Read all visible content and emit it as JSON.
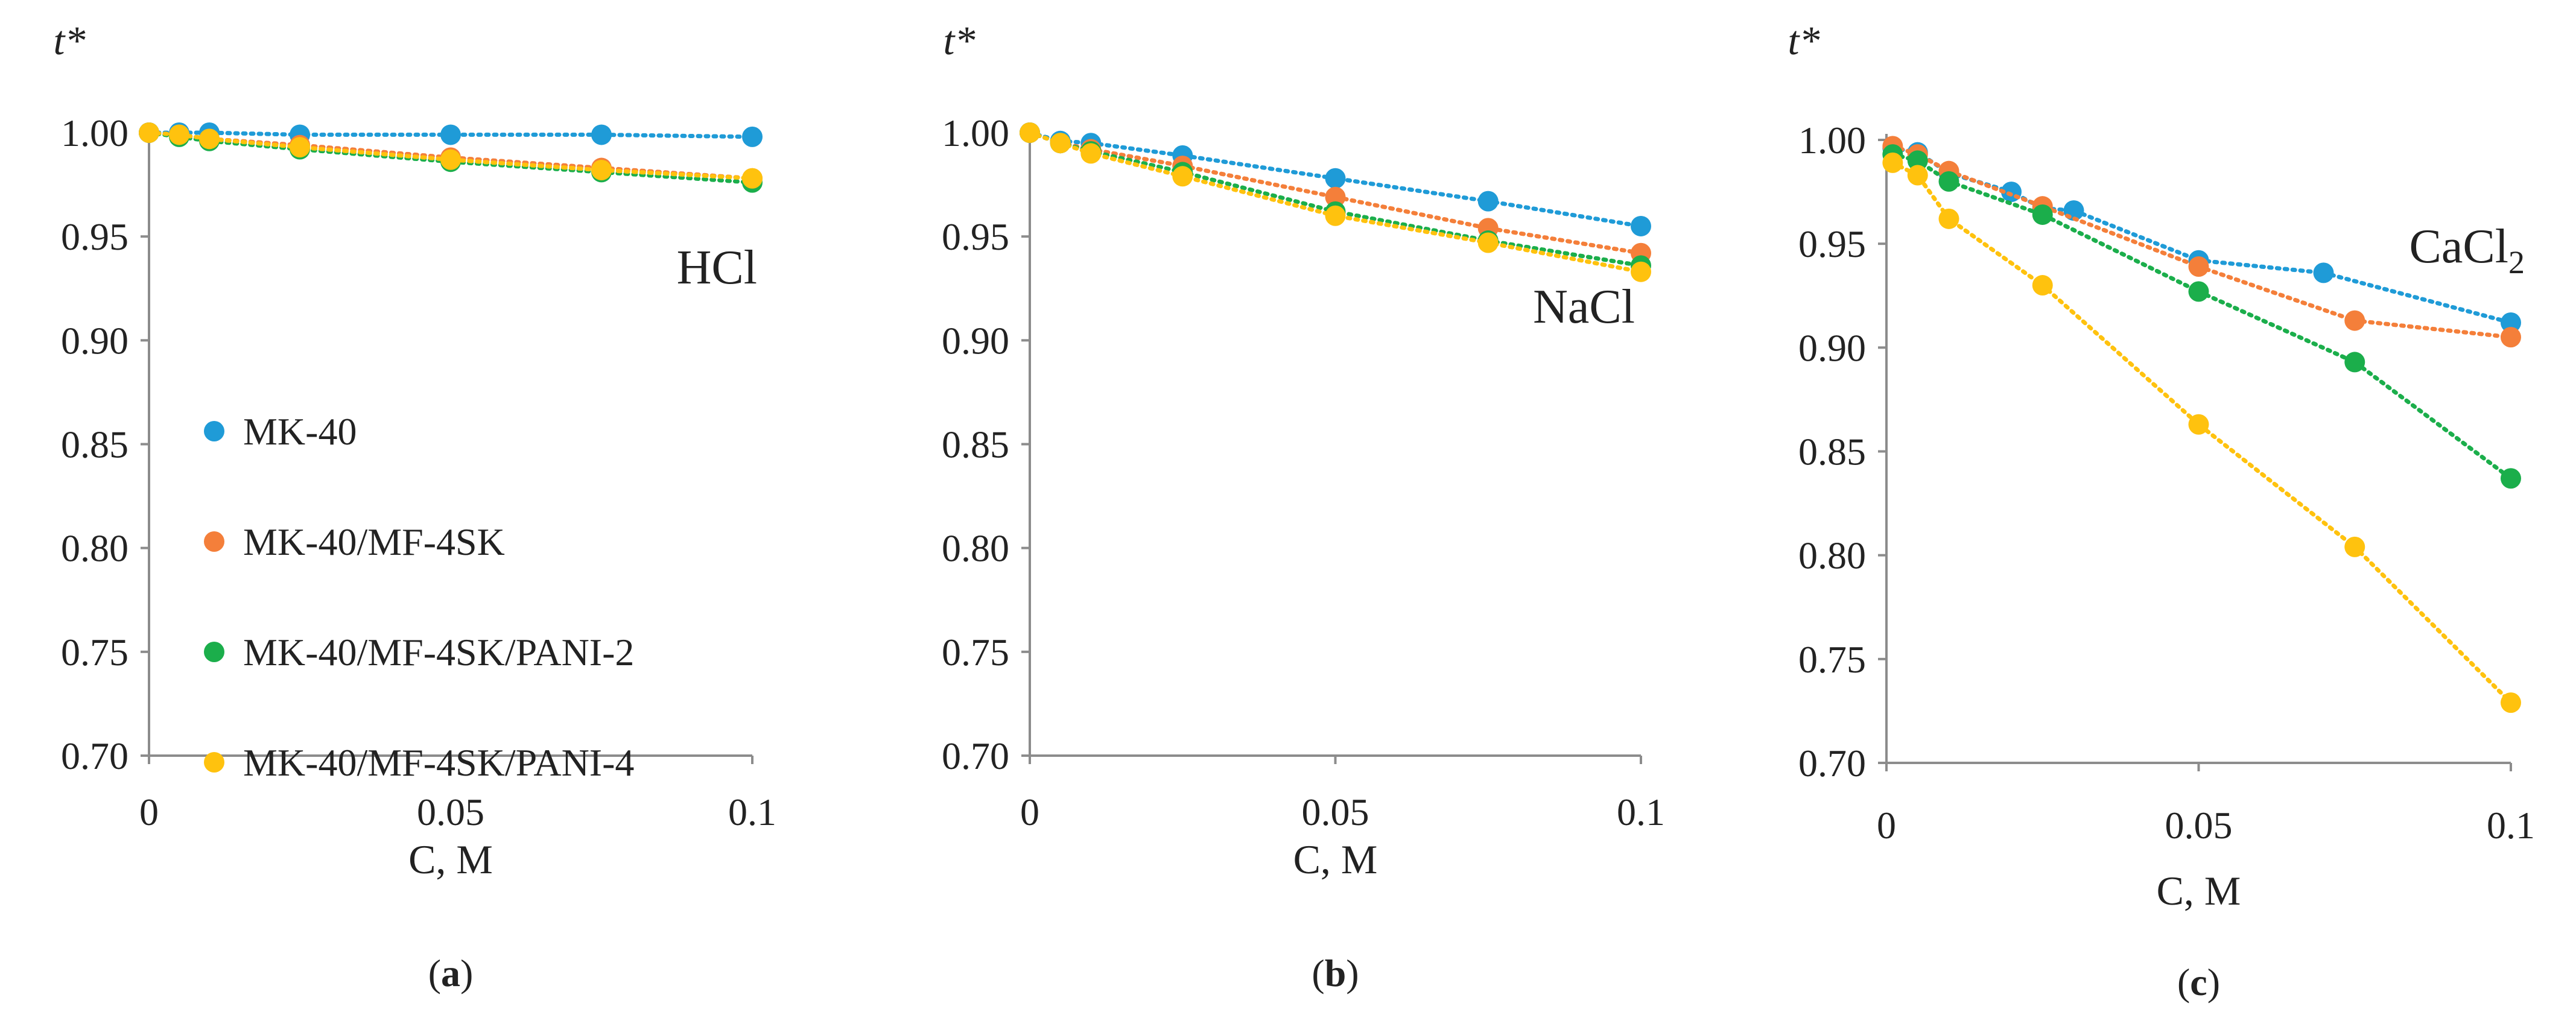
{
  "chart_data": [
    {
      "type": "scatter",
      "panel_caption": "a",
      "title": "HCl",
      "ylabel": "t*",
      "xlabel": "C, M",
      "x_ticks": [
        "0",
        "0.05",
        "0.1"
      ],
      "y_ticks": [
        "0.70",
        "0.75",
        "0.80",
        "0.85",
        "0.90",
        "0.95",
        "1.00"
      ],
      "xlim": [
        0,
        0.1
      ],
      "ylim": [
        0.7,
        1.0
      ],
      "grid": false,
      "legend_placement": "center-left",
      "series": [
        {
          "name": "MK-40",
          "color": "#1f9bd7",
          "x": [
            0,
            0.005,
            0.01,
            0.025,
            0.05,
            0.075,
            0.1
          ],
          "y": [
            1.0,
            1.0,
            1.0,
            0.999,
            0.999,
            0.999,
            0.998
          ]
        },
        {
          "name": "MK-40/MF-4SK",
          "color": "#f47f3a",
          "x": [
            0,
            0.005,
            0.01,
            0.025,
            0.05,
            0.075,
            0.1
          ],
          "y": [
            1.0,
            0.999,
            0.997,
            0.994,
            0.988,
            0.983,
            0.978
          ]
        },
        {
          "name": "MK-40/MF-4SK/PANI-2",
          "color": "#1bae4b",
          "x": [
            0,
            0.005,
            0.01,
            0.025,
            0.05,
            0.075,
            0.1
          ],
          "y": [
            1.0,
            0.998,
            0.996,
            0.992,
            0.986,
            0.981,
            0.976
          ]
        },
        {
          "name": "MK-40/MF-4SK/PANI-4",
          "color": "#ffc20e",
          "x": [
            0,
            0.005,
            0.01,
            0.025,
            0.05,
            0.075,
            0.1
          ],
          "y": [
            1.0,
            0.999,
            0.997,
            0.993,
            0.987,
            0.982,
            0.978
          ]
        }
      ]
    },
    {
      "type": "scatter",
      "panel_caption": "b",
      "title": "NaCl",
      "ylabel": "t*",
      "xlabel": "C, M",
      "x_ticks": [
        "0",
        "0.05",
        "0.1"
      ],
      "y_ticks": [
        "0.70",
        "0.75",
        "0.80",
        "0.85",
        "0.90",
        "0.95",
        "1.00"
      ],
      "xlim": [
        0,
        0.1
      ],
      "ylim": [
        0.7,
        1.0
      ],
      "grid": false,
      "series": [
        {
          "name": "MK-40",
          "color": "#1f9bd7",
          "x": [
            0,
            0.005,
            0.01,
            0.025,
            0.05,
            0.075,
            0.1
          ],
          "y": [
            1.0,
            0.996,
            0.995,
            0.989,
            0.978,
            0.967,
            0.955
          ]
        },
        {
          "name": "MK-40/MF-4SK",
          "color": "#f47f3a",
          "x": [
            0,
            0.005,
            0.01,
            0.025,
            0.05,
            0.075,
            0.1
          ],
          "y": [
            1.0,
            0.995,
            0.992,
            0.984,
            0.969,
            0.954,
            0.942
          ]
        },
        {
          "name": "MK-40/MF-4SK/PANI-2",
          "color": "#1bae4b",
          "x": [
            0,
            0.005,
            0.01,
            0.025,
            0.05,
            0.075,
            0.1
          ],
          "y": [
            1.0,
            0.995,
            0.991,
            0.981,
            0.962,
            0.948,
            0.936
          ]
        },
        {
          "name": "MK-40/MF-4SK/PANI-4",
          "color": "#ffc20e",
          "x": [
            0,
            0.005,
            0.01,
            0.025,
            0.05,
            0.075,
            0.1
          ],
          "y": [
            1.0,
            0.995,
            0.99,
            0.979,
            0.96,
            0.947,
            0.933
          ]
        }
      ]
    },
    {
      "type": "scatter",
      "panel_caption": "c",
      "title": "CaCl",
      "title_subscript": "2",
      "ylabel": "t*",
      "xlabel": "C, M",
      "x_ticks": [
        "0",
        "0.05",
        "0.1"
      ],
      "y_ticks": [
        "0.70",
        "0.75",
        "0.80",
        "0.85",
        "0.90",
        "0.95",
        "1.00"
      ],
      "xlim": [
        0,
        0.1
      ],
      "ylim": [
        0.7,
        1.0
      ],
      "grid": false,
      "series": [
        {
          "name": "MK-40",
          "color": "#1f9bd7",
          "x": [
            0.001,
            0.005,
            0.01,
            0.02,
            0.025,
            0.03,
            0.05,
            0.07,
            0.1
          ],
          "y": [
            0.996,
            0.994,
            0.984,
            0.975,
            0.967,
            0.966,
            0.942,
            0.936,
            0.912
          ]
        },
        {
          "name": "MK-40/MF-4SK",
          "color": "#f47f3a",
          "x": [
            0.001,
            0.005,
            0.01,
            0.025,
            0.05,
            0.075,
            0.1
          ],
          "y": [
            0.997,
            0.993,
            0.985,
            0.968,
            0.939,
            0.913,
            0.905
          ]
        },
        {
          "name": "MK-40/MF-4SK/PANI-2",
          "color": "#1bae4b",
          "x": [
            0.001,
            0.005,
            0.01,
            0.025,
            0.05,
            0.075,
            0.1
          ],
          "y": [
            0.993,
            0.99,
            0.98,
            0.964,
            0.927,
            0.893,
            0.837
          ]
        },
        {
          "name": "MK-40/MF-4SK/PANI-4",
          "color": "#ffc20e",
          "x": [
            0.001,
            0.005,
            0.01,
            0.025,
            0.05,
            0.075,
            0.1
          ],
          "y": [
            0.989,
            0.983,
            0.962,
            0.93,
            0.863,
            0.804,
            0.729
          ]
        }
      ]
    }
  ]
}
